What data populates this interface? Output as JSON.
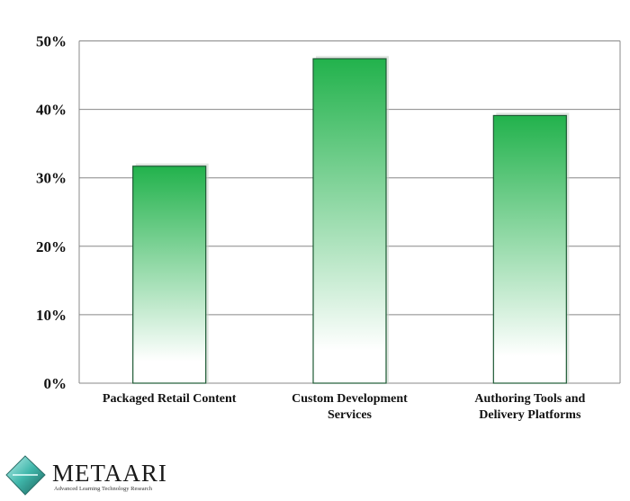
{
  "chart_data": {
    "type": "bar",
    "categories": [
      [
        "Packaged Retail Content"
      ],
      [
        "Custom Development",
        "Services"
      ],
      [
        "Authoring Tools and",
        "Delivery Platforms"
      ]
    ],
    "values": [
      31.7,
      47.4,
      39.1
    ],
    "ylim": [
      0,
      50
    ],
    "yticks": [
      "0%",
      "10%",
      "20%",
      "30%",
      "40%",
      "50%"
    ],
    "grid": true,
    "colors": {
      "bar_top": "#22b24c",
      "bar_bottom": "#ffffff",
      "bar_edge": "#1d5a34",
      "grid": "#888888"
    }
  },
  "logo": {
    "name": "METAARI",
    "tagline": "Advanced Learning Technology Research"
  }
}
